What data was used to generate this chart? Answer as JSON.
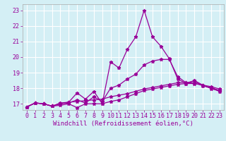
{
  "xlabel": "Windchill (Refroidissement éolien,°C)",
  "background_color": "#d4eff5",
  "grid_color": "#ffffff",
  "line_color": "#990099",
  "xlim": [
    -0.5,
    23.5
  ],
  "ylim": [
    16.6,
    23.4
  ],
  "x_ticks": [
    0,
    1,
    2,
    3,
    4,
    5,
    6,
    7,
    8,
    9,
    10,
    11,
    12,
    13,
    14,
    15,
    16,
    17,
    18,
    19,
    20,
    21,
    22,
    23
  ],
  "y_ticks": [
    17,
    18,
    19,
    20,
    21,
    22,
    23
  ],
  "series": [
    [
      16.8,
      17.05,
      17.0,
      16.85,
      17.05,
      17.1,
      17.7,
      17.3,
      17.8,
      17.0,
      19.7,
      19.3,
      20.5,
      21.3,
      23.0,
      21.3,
      20.7,
      19.9,
      18.6,
      18.3,
      18.5,
      18.2,
      18.0,
      17.8
    ],
    [
      16.8,
      17.05,
      17.0,
      16.85,
      16.9,
      17.0,
      16.75,
      17.0,
      17.0,
      17.0,
      17.15,
      17.25,
      17.45,
      17.65,
      17.85,
      17.95,
      18.05,
      18.15,
      18.25,
      18.3,
      18.3,
      18.2,
      18.1,
      17.95
    ],
    [
      16.8,
      17.05,
      17.0,
      16.85,
      17.0,
      17.1,
      17.15,
      17.2,
      17.25,
      17.3,
      17.45,
      17.55,
      17.65,
      17.8,
      17.95,
      18.05,
      18.15,
      18.25,
      18.35,
      18.38,
      18.32,
      18.18,
      17.98,
      17.82
    ],
    [
      16.8,
      17.05,
      17.0,
      16.85,
      17.0,
      17.05,
      17.25,
      17.05,
      17.45,
      17.15,
      18.0,
      18.2,
      18.6,
      18.9,
      19.5,
      19.75,
      19.85,
      19.85,
      18.75,
      18.35,
      18.45,
      18.15,
      18.05,
      17.85
    ]
  ],
  "tick_fontsize": 6,
  "xlabel_fontsize": 6.5
}
